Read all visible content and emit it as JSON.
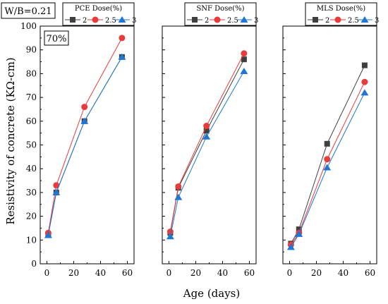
{
  "header": {
    "wb_label": "W/B=0.21"
  },
  "chart_data": [
    {
      "type": "line",
      "panel_label": "70%",
      "legend_title": "PCE Dose(%)",
      "xlabel": "Age (days)",
      "ylabel": "Resistivity of concrete (KΩ-cm)",
      "xlim": [
        -5,
        65
      ],
      "ylim": [
        0,
        100
      ],
      "xticks": [
        0,
        20,
        40,
        60
      ],
      "yticks": [
        0,
        10,
        20,
        30,
        40,
        50,
        60,
        70,
        80,
        90,
        100
      ],
      "x": [
        1,
        7,
        28,
        56
      ],
      "series": [
        {
          "name": "2",
          "marker": "square",
          "color": "#404040",
          "values": [
            12.5,
            30.0,
            60.0,
            87.0
          ]
        },
        {
          "name": "2.5",
          "marker": "circle",
          "color": "#e83b3b",
          "values": [
            13.0,
            33.0,
            66.0,
            95.0
          ]
        },
        {
          "name": "3",
          "marker": "triangle",
          "color": "#1f77d4",
          "values": [
            12.0,
            30.0,
            60.0,
            87.0
          ]
        }
      ]
    },
    {
      "type": "line",
      "legend_title": "SNF Dose(%)",
      "xlim": [
        -5,
        65
      ],
      "ylim": [
        0,
        100
      ],
      "xticks": [
        0,
        20,
        40,
        60
      ],
      "x": [
        1,
        7,
        28,
        56
      ],
      "series": [
        {
          "name": "2",
          "marker": "square",
          "color": "#404040",
          "values": [
            13.0,
            32.0,
            56.0,
            86.0
          ]
        },
        {
          "name": "2.5",
          "marker": "circle",
          "color": "#e83b3b",
          "values": [
            13.5,
            32.5,
            58.0,
            88.5
          ]
        },
        {
          "name": "3",
          "marker": "triangle",
          "color": "#1f77d4",
          "values": [
            11.5,
            28.0,
            53.5,
            81.0
          ]
        }
      ]
    },
    {
      "type": "line",
      "legend_title": "MLS Dose(%)",
      "xlim": [
        -5,
        65
      ],
      "ylim": [
        0,
        100
      ],
      "xticks": [
        0,
        20,
        40,
        60
      ],
      "x": [
        1,
        7,
        28,
        56
      ],
      "series": [
        {
          "name": "2",
          "marker": "square",
          "color": "#404040",
          "values": [
            8.5,
            14.5,
            50.5,
            83.5
          ]
        },
        {
          "name": "2.5",
          "marker": "circle",
          "color": "#e83b3b",
          "values": [
            8.0,
            13.0,
            44.0,
            76.5
          ]
        },
        {
          "name": "3",
          "marker": "triangle",
          "color": "#1f77d4",
          "values": [
            7.0,
            12.5,
            40.5,
            72.0
          ]
        }
      ]
    }
  ]
}
